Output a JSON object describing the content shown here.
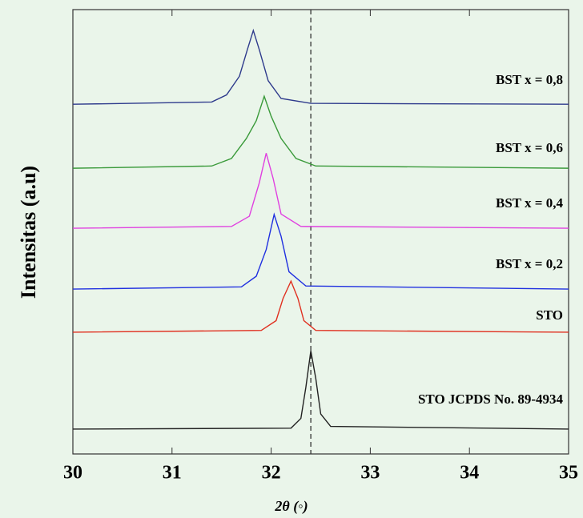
{
  "chart_data": {
    "type": "line",
    "x_label": "2θ (◦)",
    "y_label": "Intensitas (a.u)",
    "xlim": [
      30,
      35
    ],
    "ylim": [
      0,
      100
    ],
    "xticks": [
      30,
      31,
      32,
      33,
      34,
      35
    ],
    "reference_line": 32.4,
    "series": [
      {
        "name": "BST x = 0,8",
        "color": "#2e3a8c",
        "x": [
          30,
          31.4,
          31.55,
          31.68,
          31.76,
          31.82,
          31.88,
          31.97,
          32.1,
          32.4,
          35
        ],
        "values": [
          78.7,
          79.2,
          80.8,
          85,
          91,
          95.3,
          91,
          84,
          80,
          78.9,
          78.7
        ]
      },
      {
        "name": "BST x = 0,6",
        "color": "#3a9a3a",
        "x": [
          30,
          31.4,
          31.6,
          31.75,
          31.85,
          31.93,
          32.0,
          32.1,
          32.25,
          32.45,
          35
        ],
        "values": [
          64.3,
          64.8,
          66.5,
          71,
          75,
          80.5,
          76,
          71,
          66.5,
          64.8,
          64.3
        ]
      },
      {
        "name": "BST x = 0,4",
        "color": "#e040e0",
        "x": [
          30,
          31.6,
          31.78,
          31.88,
          31.95,
          32.02,
          32.1,
          32.3,
          35
        ],
        "values": [
          50.8,
          51.2,
          53.5,
          61,
          67.7,
          62,
          54,
          51.2,
          50.8
        ]
      },
      {
        "name": "BST x = 0,2",
        "color": "#2030e0",
        "x": [
          30,
          31.7,
          31.85,
          31.95,
          32.03,
          32.1,
          32.18,
          32.35,
          35
        ],
        "values": [
          37.1,
          37.6,
          40,
          46,
          53.9,
          49,
          41,
          37.8,
          37.1
        ]
      },
      {
        "name": "STO",
        "color": "#e03020",
        "x": [
          30,
          31.9,
          32.05,
          32.12,
          32.2,
          32.27,
          32.33,
          32.45,
          35
        ],
        "values": [
          27.4,
          27.8,
          30,
          35,
          38.9,
          35,
          30,
          27.8,
          27.4
        ]
      },
      {
        "name": "STO JCPDS No. 89-4934",
        "color": "#222222",
        "x": [
          30,
          32.2,
          32.3,
          32.35,
          32.4,
          32.45,
          32.5,
          32.6,
          35
        ],
        "values": [
          5.6,
          5.8,
          8,
          15,
          23.2,
          17,
          9,
          6.2,
          5.6
        ]
      }
    ]
  }
}
